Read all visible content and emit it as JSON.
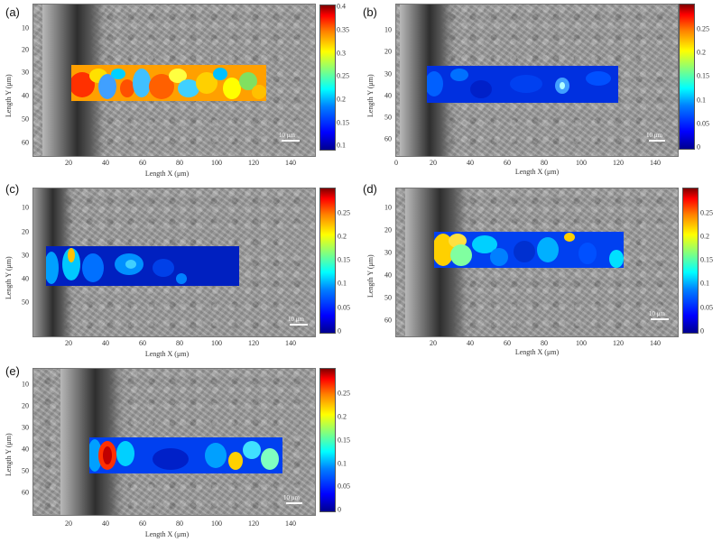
{
  "figure": {
    "panels": [
      {
        "label": "(a)",
        "xlabel": "Length X (μm)",
        "ylabel": "Length Y (μm)",
        "xticks": [
          "20",
          "40",
          "60",
          "80",
          "100",
          "120",
          "140"
        ],
        "yticks": [
          "10",
          "20",
          "30",
          "40",
          "50",
          "60"
        ],
        "colorbar_ticks": [
          "0.4",
          "0.35",
          "0.3",
          "0.25",
          "0.2",
          "0.15",
          "0.1"
        ],
        "scale_bar": "10 μm"
      },
      {
        "label": "(b)",
        "xlabel": "Length X (μm)",
        "ylabel": "Length Y (μm)",
        "xticks": [
          "0",
          "20",
          "40",
          "60",
          "80",
          "100",
          "120",
          "140"
        ],
        "yticks": [
          "10",
          "20",
          "30",
          "40",
          "50",
          "60"
        ],
        "colorbar_ticks": [
          "0.25",
          "0.2",
          "0.15",
          "0.1",
          "0.05",
          "0"
        ],
        "scale_bar": "10 μm"
      },
      {
        "label": "(c)",
        "xlabel": "Length X (μm)",
        "ylabel": "Length Y (μm)",
        "xticks": [
          "20",
          "40",
          "60",
          "80",
          "100",
          "120",
          "140"
        ],
        "yticks": [
          "10",
          "20",
          "30",
          "40",
          "50"
        ],
        "colorbar_ticks": [
          "0.25",
          "0.2",
          "0.15",
          "0.1",
          "0.05",
          "0"
        ],
        "scale_bar": "10 μm"
      },
      {
        "label": "(d)",
        "xlabel": "Length X (μm)",
        "ylabel": "Length Y (μm)",
        "xticks": [
          "20",
          "40",
          "60",
          "80",
          "100",
          "120",
          "140"
        ],
        "yticks": [
          "10",
          "20",
          "30",
          "40",
          "50",
          "60"
        ],
        "colorbar_ticks": [
          "0.25",
          "0.2",
          "0.15",
          "0.1",
          "0.05",
          "0"
        ],
        "scale_bar": "10 μm"
      },
      {
        "label": "(e)",
        "xlabel": "Length X (μm)",
        "ylabel": "Length Y (μm)",
        "xticks": [
          "20",
          "40",
          "60",
          "80",
          "100",
          "120",
          "140"
        ],
        "yticks": [
          "10",
          "20",
          "30",
          "40",
          "50",
          "60"
        ],
        "colorbar_ticks": [
          "0.25",
          "0.2",
          "0.15",
          "0.1",
          "0.05",
          "0"
        ],
        "scale_bar": "10 μm"
      }
    ],
    "colormap": "jet"
  }
}
